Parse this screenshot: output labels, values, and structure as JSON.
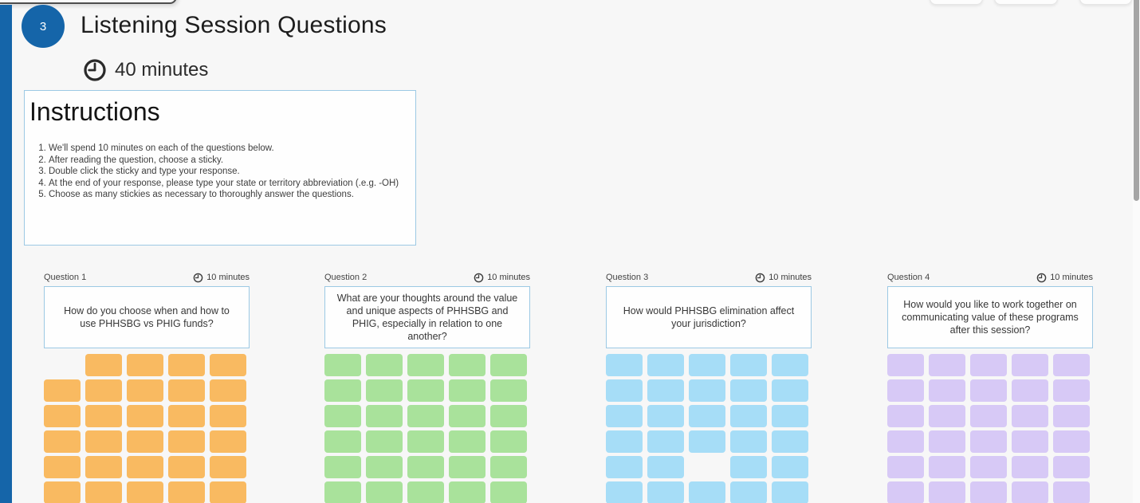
{
  "page": {
    "background_color": "#f7f7f7",
    "accent_blue": "#1565a9",
    "box_border_blue": "#9cc9e4"
  },
  "header": {
    "step_number": "3",
    "title": "Listening Session Questions",
    "timer_label": "40 minutes",
    "timer_icon": "clock-icon"
  },
  "instructions": {
    "title": "Instructions",
    "items": [
      "We'll spend 10 minutes on each of the questions below.",
      "After reading the question, choose a sticky.",
      "Double click the sticky and type your response.",
      "At the end of your response, please type your state or territory abbreviation (.e.g.  -OH)",
      "Choose as many stickies as necessary to thoroughly answer the questions."
    ]
  },
  "questions": [
    {
      "label": "Question 1",
      "timer_label": "10 minutes",
      "text": "How do you choose when and how to use PHHSBG vs PHIG funds?",
      "sticky_color": "#f9ba61",
      "grid": {
        "rows": 6,
        "cols": 5,
        "missing_cells": [
          [
            0,
            0
          ]
        ]
      }
    },
    {
      "label": "Question 2",
      "timer_label": "10 minutes",
      "text": "What are your thoughts around the value and unique aspects of PHHSBG and PHIG, especially in relation to one another?",
      "sticky_color": "#a9e29b",
      "grid": {
        "rows": 6,
        "cols": 5,
        "missing_cells": []
      }
    },
    {
      "label": "Question 3",
      "timer_label": "10 minutes",
      "text": "How would PHHSBG elimination affect your jurisdiction?",
      "sticky_color": "#a6ddf7",
      "grid": {
        "rows": 6,
        "cols": 5,
        "missing_cells": [
          [
            4,
            2
          ]
        ]
      }
    },
    {
      "label": "Question 4",
      "timer_label": "10 minutes",
      "text": "How would you like to work together on communicating value of these programs after this session?",
      "sticky_color": "#d7c9f6",
      "grid": {
        "rows": 6,
        "cols": 5,
        "missing_cells": []
      }
    }
  ]
}
